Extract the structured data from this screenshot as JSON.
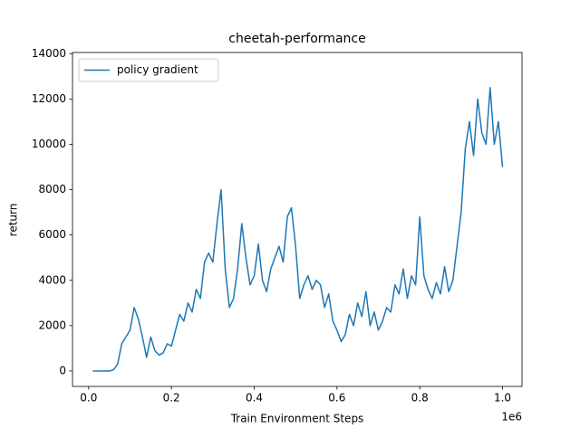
{
  "chart_data": {
    "type": "line",
    "title": "cheetah-performance",
    "x_label": "Train Environment Steps",
    "y_label": "return",
    "x_offset_label": "1e6",
    "x": [
      10000,
      20000,
      30000,
      40000,
      50000,
      60000,
      70000,
      80000,
      90000,
      100000,
      110000,
      120000,
      130000,
      140000,
      150000,
      160000,
      170000,
      180000,
      190000,
      200000,
      210000,
      220000,
      230000,
      240000,
      250000,
      260000,
      270000,
      280000,
      290000,
      300000,
      310000,
      320000,
      330000,
      340000,
      350000,
      360000,
      370000,
      380000,
      390000,
      400000,
      410000,
      420000,
      430000,
      440000,
      450000,
      460000,
      470000,
      480000,
      490000,
      500000,
      510000,
      520000,
      530000,
      540000,
      550000,
      560000,
      570000,
      580000,
      590000,
      600000,
      610000,
      620000,
      630000,
      640000,
      650000,
      660000,
      670000,
      680000,
      690000,
      700000,
      710000,
      720000,
      730000,
      740000,
      750000,
      760000,
      770000,
      780000,
      790000,
      800000,
      810000,
      820000,
      830000,
      840000,
      850000,
      860000,
      870000,
      880000,
      890000,
      900000,
      910000,
      920000,
      930000,
      940000,
      950000,
      960000,
      970000,
      980000,
      990000,
      1000000
    ],
    "series": [
      {
        "name": "policy gradient",
        "color": "#1f77b4",
        "values": [
          0,
          0,
          0,
          0,
          0,
          50,
          300,
          1200,
          1500,
          1800,
          2800,
          2300,
          1500,
          600,
          1500,
          900,
          700,
          800,
          1200,
          1100,
          1800,
          2500,
          2200,
          3000,
          2600,
          3600,
          3200,
          4800,
          5200,
          4800,
          6500,
          8000,
          4500,
          2800,
          3200,
          4500,
          6500,
          5000,
          3800,
          4200,
          5600,
          4000,
          3500,
          4500,
          5000,
          5500,
          4800,
          6800,
          7200,
          5500,
          3200,
          3800,
          4200,
          3600,
          4000,
          3800,
          2800,
          3400,
          2200,
          1800,
          1300,
          1600,
          2500,
          2000,
          3000,
          2400,
          3500,
          2000,
          2600,
          1800,
          2200,
          2800,
          2600,
          3800,
          3400,
          4500,
          3200,
          4200,
          3800,
          6800,
          4200,
          3600,
          3200,
          3900,
          3400,
          4600,
          3500,
          4000,
          5500,
          7000,
          9800,
          11000,
          9500,
          12000,
          10500,
          10000,
          12500,
          10000,
          11000,
          9000
        ]
      }
    ],
    "xlim": [
      -39000,
      1047000
    ],
    "xticks": [
      {
        "value": 0,
        "label": "0.0"
      },
      {
        "value": 200000,
        "label": "0.2"
      },
      {
        "value": 400000,
        "label": "0.4"
      },
      {
        "value": 600000,
        "label": "0.6"
      },
      {
        "value": 800000,
        "label": "0.8"
      },
      {
        "value": 1000000,
        "label": "1.0"
      }
    ],
    "ylim": [
      -680,
      14050
    ],
    "yticks": [
      0,
      2000,
      4000,
      6000,
      8000,
      10000,
      12000,
      14000
    ],
    "legend": "upper left"
  }
}
